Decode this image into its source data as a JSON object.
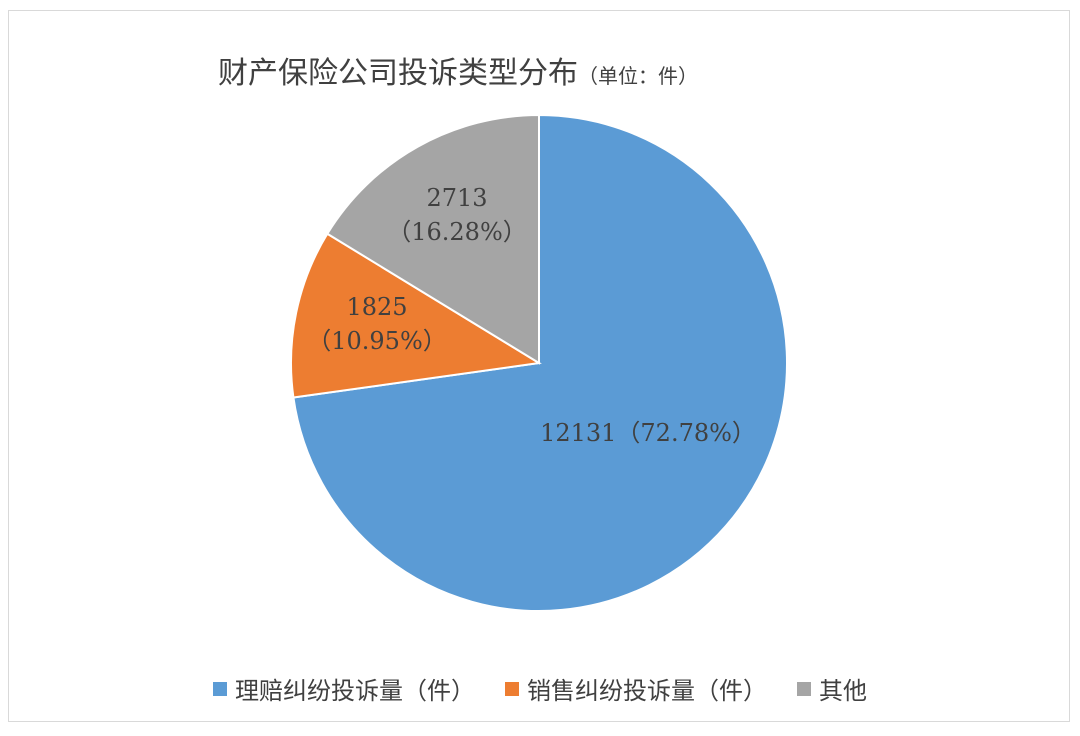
{
  "chart_data": {
    "type": "pie",
    "title": "财产保险公司投诉类型分布",
    "unit_note": "（单位：件）",
    "slices": [
      {
        "label": "理赔纠纷投诉量（件）",
        "value": 12131,
        "percent_label": "72.78%",
        "color": "#5b9bd5"
      },
      {
        "label": "销售纠纷投诉量（件）",
        "value": 1825,
        "percent_label": "10.95%",
        "color": "#ed7d31"
      },
      {
        "label": "其他",
        "value": 2713,
        "percent_label": "16.28%",
        "color": "#a5a5a5"
      }
    ],
    "data_labels": [
      {
        "value_text": "12131（72.78%）"
      },
      {
        "value_text": "1825",
        "percent_text": "（10.95%）"
      },
      {
        "value_text": "2713",
        "percent_text": "（16.28%）"
      }
    ],
    "legend_position": "bottom"
  }
}
